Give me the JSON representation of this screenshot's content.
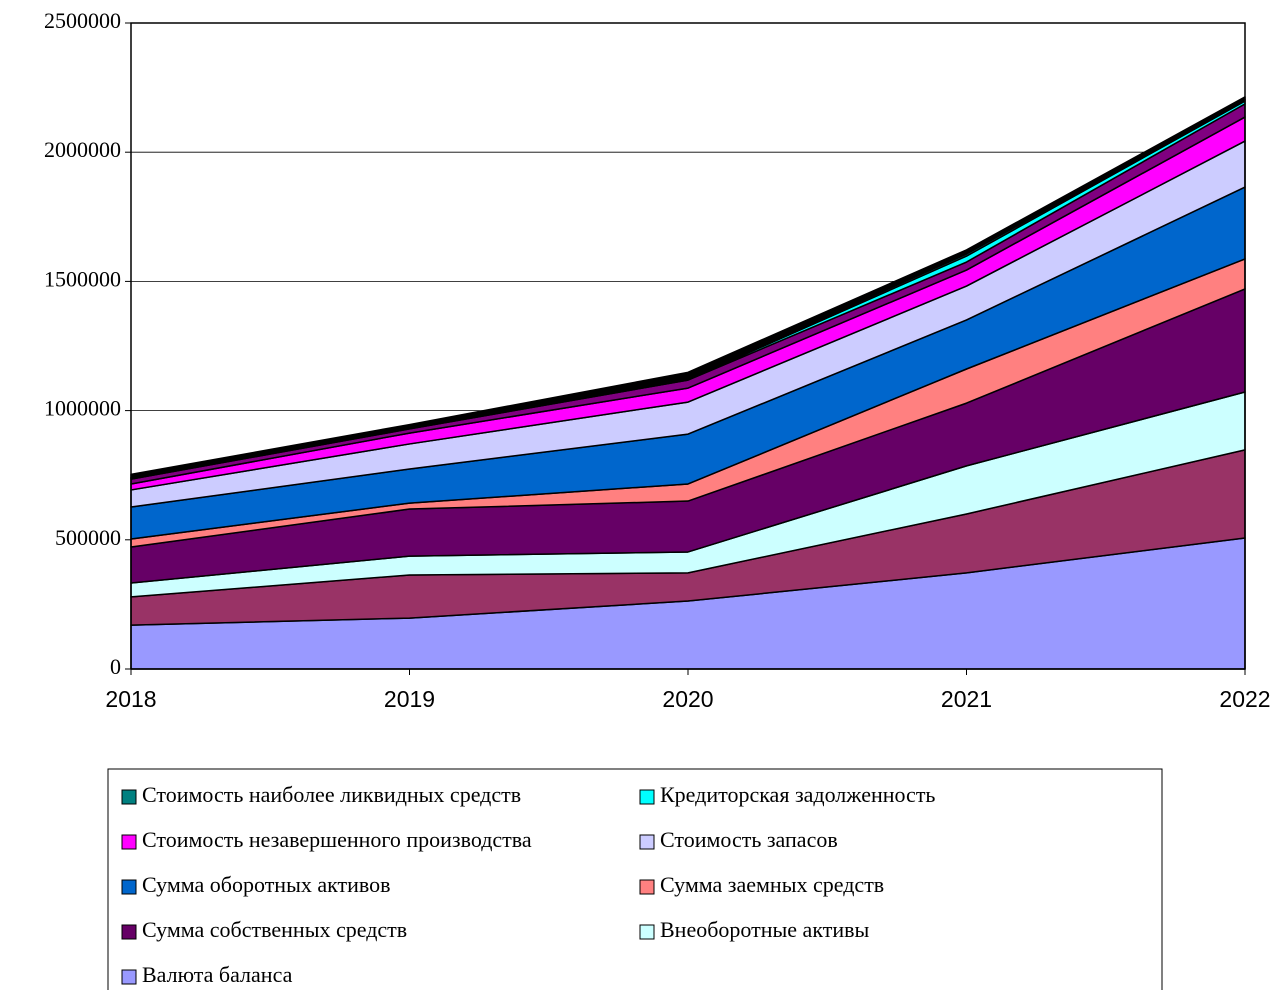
{
  "chart_data": {
    "type": "stacked_area",
    "categories": [
      "2018",
      "2019",
      "2020",
      "2021",
      "2022"
    ],
    "ylim": [
      0,
      2500000
    ],
    "yticks": [
      0,
      500000,
      1000000,
      1500000,
      2000000,
      2500000
    ],
    "grid": true,
    "legend": "bottom",
    "series": [
      {
        "color": "#000000",
        "values": [
          12000,
          11000,
          24000,
          16000,
          11000
        ]
      },
      {
        "name": "Стоимость наиболее ликвидных средств",
        "color": "#008080",
        "values": [
          4000,
          4000,
          4000,
          8000,
          5000
        ]
      },
      {
        "name": "Кредиторская задолженность",
        "color": "#00ffff",
        "values": [
          2000,
          2000,
          2000,
          23000,
          11000
        ]
      },
      {
        "color": "#800080",
        "values": [
          19000,
          16000,
          31000,
          31000,
          51000
        ]
      },
      {
        "name": "Стоимость незавершенного производства",
        "color": "#ff00ff",
        "values": [
          23000,
          42000,
          54000,
          62000,
          93000
        ]
      },
      {
        "name": "Стоимость запасов",
        "color": "#ccccff",
        "values": [
          66000,
          97000,
          124000,
          131000,
          178000
        ]
      },
      {
        "name": "Сумма оборотных активов",
        "color": "#0066cc",
        "values": [
          124000,
          132000,
          193000,
          190000,
          278000
        ]
      },
      {
        "name": "Сумма заемных средств",
        "color": "#ff8080",
        "values": [
          31000,
          23000,
          66000,
          132000,
          116000
        ]
      },
      {
        "name": "Сумма собственных средств",
        "color": "#660066",
        "values": [
          139000,
          182000,
          197000,
          243000,
          399000
        ]
      },
      {
        "name": "Внеоборотные активы",
        "color": "#ccffff",
        "values": [
          54000,
          73000,
          81000,
          186000,
          224000
        ]
      },
      {
        "color": "#993366",
        "values": [
          109000,
          167000,
          109000,
          228000,
          341000
        ]
      },
      {
        "name": "Валюта баланса",
        "color": "#9999ff",
        "values": [
          170000,
          197000,
          263000,
          372000,
          507000
        ]
      }
    ]
  }
}
